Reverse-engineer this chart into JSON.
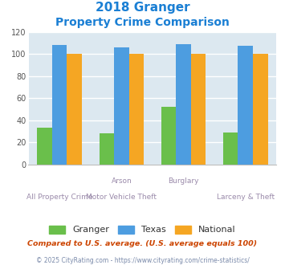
{
  "title_line1": "2018 Granger",
  "title_line2": "Property Crime Comparison",
  "groups": [
    "All Property Crime",
    "Arson /\nMotor Vehicle Theft",
    "Burglary",
    "Larceny & Theft"
  ],
  "granger": [
    33,
    28,
    52,
    29
  ],
  "texas": [
    108,
    106,
    109,
    107
  ],
  "national": [
    100,
    100,
    100,
    100
  ],
  "granger_color": "#6abf4b",
  "texas_color": "#4d9de0",
  "national_color": "#f5a623",
  "bg_color": "#dce8f0",
  "ylim": [
    0,
    120
  ],
  "yticks": [
    0,
    20,
    40,
    60,
    80,
    100,
    120
  ],
  "legend_labels": [
    "Granger",
    "Texas",
    "National"
  ],
  "footnote1": "Compared to U.S. average. (U.S. average equals 100)",
  "footnote2": "© 2025 CityRating.com - https://www.cityrating.com/crime-statistics/",
  "title_color": "#1a7fd4",
  "label_color": "#9a8aaa",
  "footnote1_color": "#cc4400",
  "footnote2_color": "#7a8aaa",
  "bar_width": 0.24,
  "top_labels": [
    "",
    "Arson",
    "Burglary",
    ""
  ],
  "bottom_labels": [
    "All Property Crime",
    "Motor Vehicle Theft",
    "",
    "Larceny & Theft"
  ]
}
